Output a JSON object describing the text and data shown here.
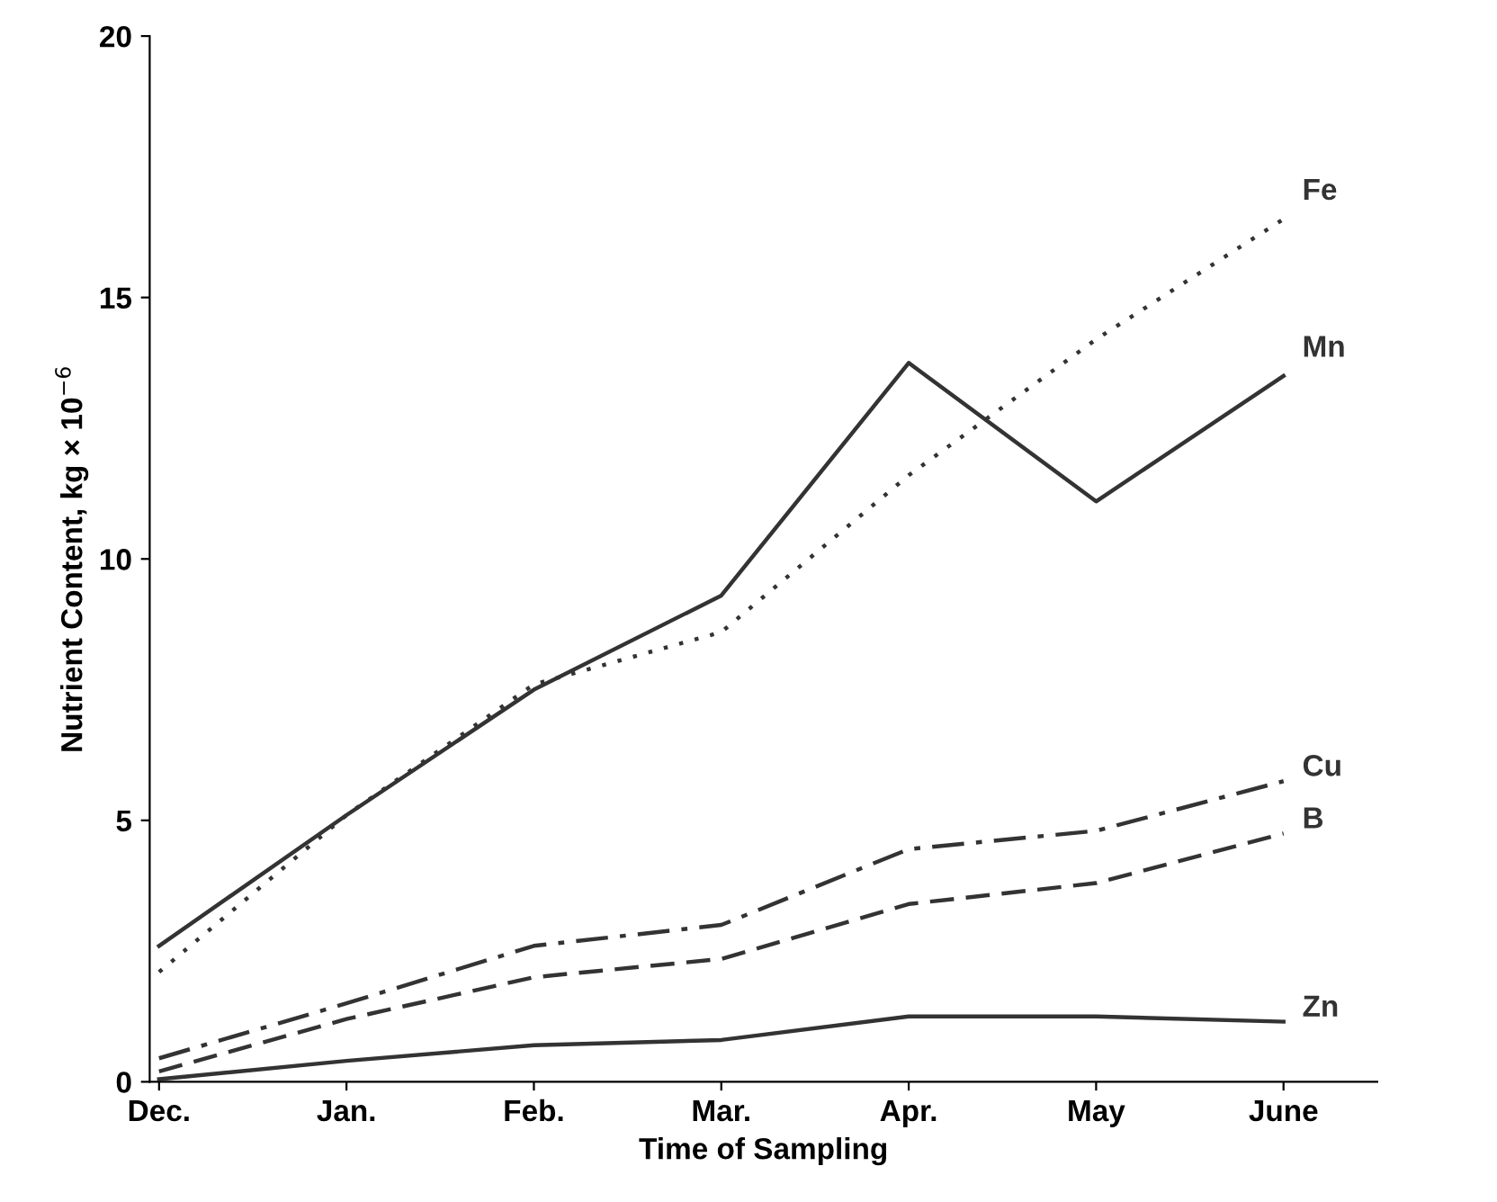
{
  "chart_data": {
    "type": "line",
    "xlabel": "Time of Sampling",
    "ylabel": "Nutrient Content, kg × 10$^{−6}$",
    "categories": [
      "Dec.",
      "Jan.",
      "Feb.",
      "Mar.",
      "Apr.",
      "May",
      "June"
    ],
    "ylim": [
      0,
      20
    ],
    "yticks": [
      0,
      5,
      10,
      15,
      20
    ],
    "grid": false,
    "legend": false,
    "marker": "none",
    "series": [
      {
        "name": "Fe",
        "color": "#333333",
        "line_style": "dotted",
        "values": [
          2.1,
          5.1,
          7.6,
          8.6,
          11.6,
          14.2,
          16.5
        ]
      },
      {
        "name": "Mn",
        "color": "#333333",
        "line_style": "solid",
        "values": [
          2.6,
          5.1,
          7.5,
          9.3,
          13.75,
          11.1,
          13.5
        ]
      },
      {
        "name": "Cu",
        "color": "#333333",
        "line_style": "dashdot",
        "values": [
          0.45,
          1.5,
          2.6,
          3.0,
          4.45,
          4.8,
          5.75
        ]
      },
      {
        "name": "B",
        "color": "#333333",
        "line_style": "dashed",
        "values": [
          0.2,
          1.2,
          2.0,
          2.35,
          3.4,
          3.8,
          4.75
        ]
      },
      {
        "name": "Zn",
        "color": "#333333",
        "line_style": "solid",
        "values": [
          0.05,
          0.4,
          0.7,
          0.8,
          1.25,
          1.25,
          1.15
        ]
      }
    ]
  }
}
